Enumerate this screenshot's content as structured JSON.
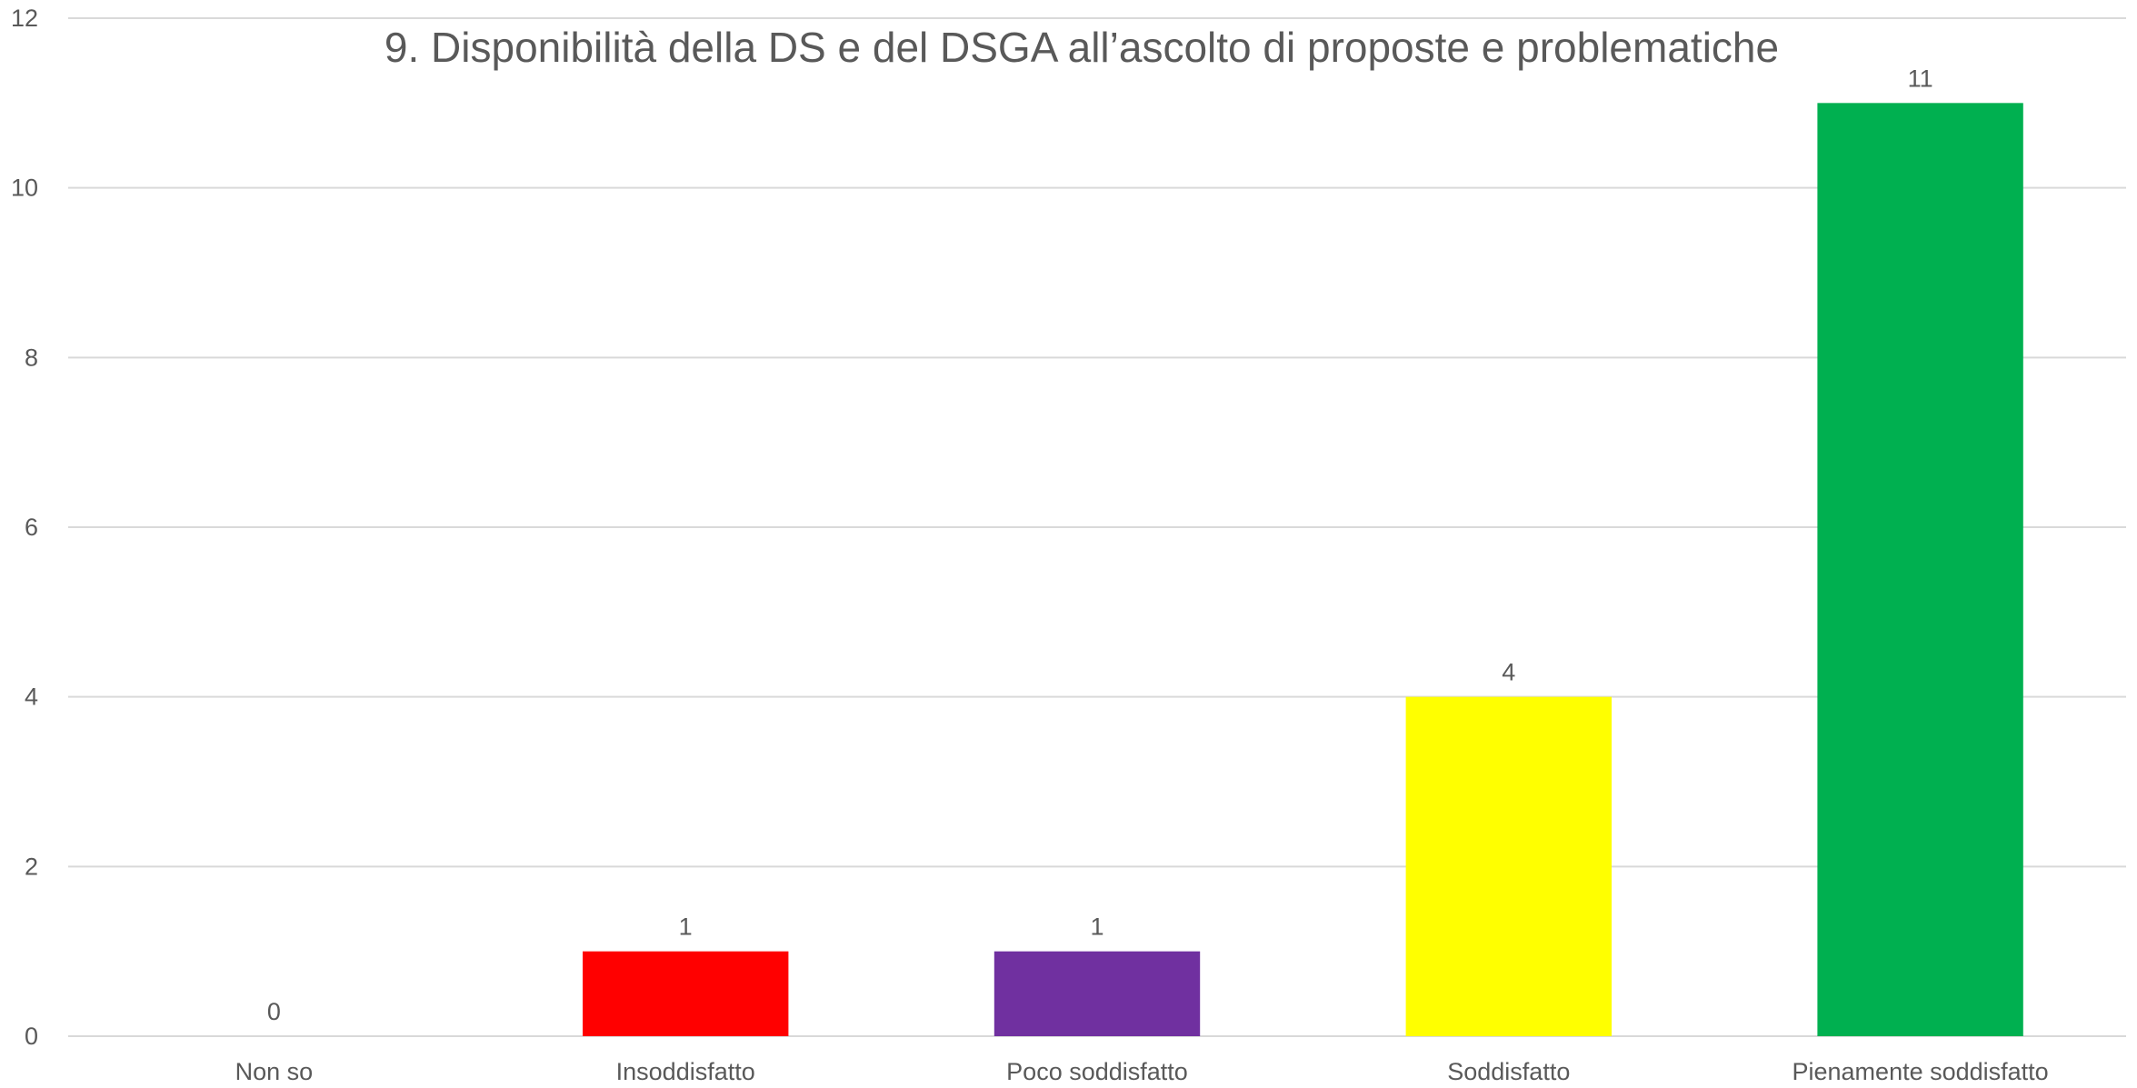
{
  "chart_data": {
    "type": "bar",
    "title": "9. Disponibilità della DS e del DSGA all’ascolto di proposte e problematiche",
    "xlabel": "",
    "ylabel": "",
    "categories": [
      "Non so",
      "Insoddisfatto",
      "Poco soddisfatto",
      "Soddisfatto",
      "Pienamente soddisfatto"
    ],
    "values": [
      0,
      1,
      1,
      4,
      11
    ],
    "colors": [
      "#c00000",
      "#ff0000",
      "#7030a0",
      "#ffff00",
      "#00b050"
    ],
    "ylim": [
      0,
      12
    ],
    "yticks": [
      0,
      2,
      4,
      6,
      8,
      10,
      12
    ],
    "grid": true,
    "data_labels": true
  }
}
